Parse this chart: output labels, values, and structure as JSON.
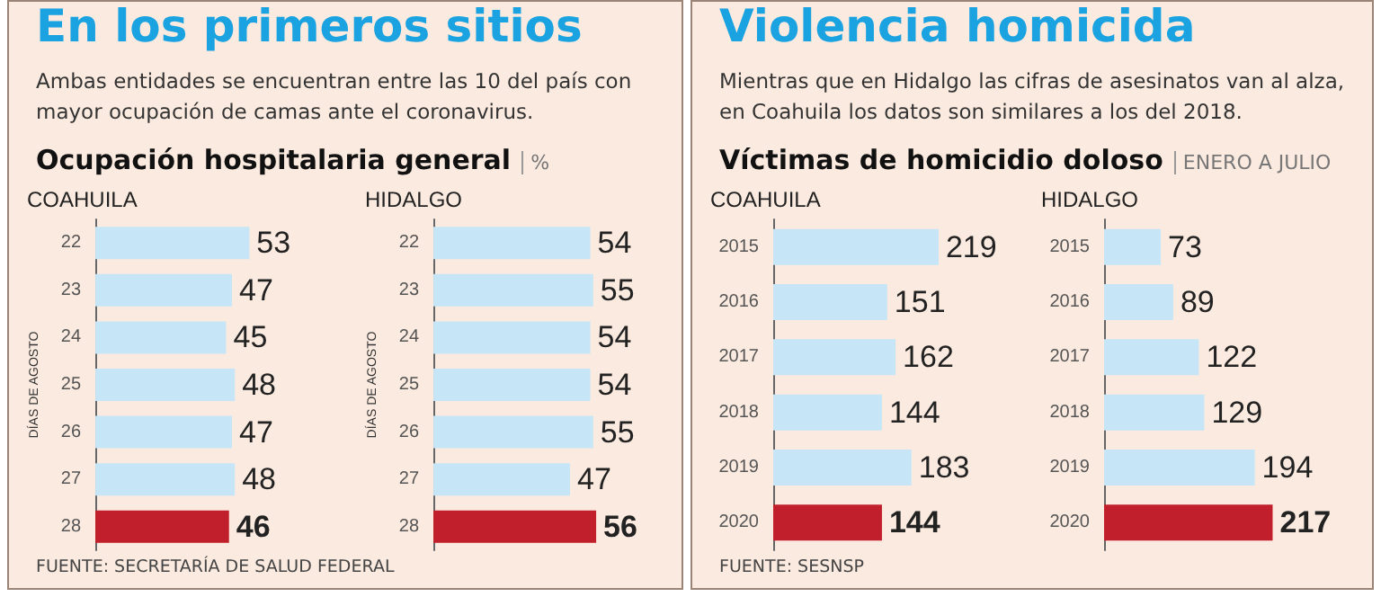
{
  "chart_data": [
    {
      "type": "bar",
      "orientation": "horizontal",
      "title": "COAHUILA",
      "ylabel": "DÍAS DE AGOSTO",
      "tick_labels": "y",
      "data_labels": true,
      "categories": [
        "22",
        "23",
        "24",
        "25",
        "26",
        "27",
        "28"
      ],
      "values": [
        53,
        47,
        45,
        48,
        47,
        48,
        46
      ],
      "colors": [
        "#c6e6f7",
        "#c6e6f7",
        "#c6e6f7",
        "#c6e6f7",
        "#c6e6f7",
        "#c6e6f7",
        "#c21f2c"
      ],
      "annotations": [
        "En los primeros sitios",
        "Ambas entidades se encuentran entre las 10 del país con mayor ocupación de camas ante el coronavirus.",
        "Ocupación hospitalaria general",
        "%",
        "FUENTE: SECRETARÍA DE SALUD FEDERAL"
      ]
    },
    {
      "type": "bar",
      "orientation": "horizontal",
      "title": "HIDALGO",
      "ylabel": "DÍAS DE AGOSTO",
      "tick_labels": "y",
      "data_labels": true,
      "categories": [
        "22",
        "23",
        "24",
        "25",
        "26",
        "27",
        "28"
      ],
      "values": [
        54,
        55,
        54,
        54,
        55,
        47,
        56
      ],
      "colors": [
        "#c6e6f7",
        "#c6e6f7",
        "#c6e6f7",
        "#c6e6f7",
        "#c6e6f7",
        "#c6e6f7",
        "#c21f2c"
      ]
    },
    {
      "type": "bar",
      "orientation": "horizontal",
      "title": "COAHUILA",
      "tick_labels": "y",
      "data_labels": true,
      "categories": [
        "2015",
        "2016",
        "2017",
        "2018",
        "2019",
        "2020"
      ],
      "values": [
        219,
        151,
        162,
        144,
        183,
        144
      ],
      "colors": [
        "#c6e6f7",
        "#c6e6f7",
        "#c6e6f7",
        "#c6e6f7",
        "#c6e6f7",
        "#c21f2c"
      ],
      "annotations": [
        "Violencia homicida",
        "Mientras que en Hidalgo las cifras de asesinatos van al alza, en Coahuila los datos son similares a los del 2018.",
        "Víctimas de homicidio doloso",
        "ENERO A JULIO",
        "FUENTE: SESNSP"
      ]
    },
    {
      "type": "bar",
      "orientation": "horizontal",
      "title": "HIDALGO",
      "tick_labels": "y",
      "data_labels": true,
      "categories": [
        "2015",
        "2016",
        "2017",
        "2018",
        "2019",
        "2020"
      ],
      "values": [
        73,
        89,
        122,
        129,
        194,
        217
      ],
      "colors": [
        "#c6e6f7",
        "#c6e6f7",
        "#c6e6f7",
        "#c6e6f7",
        "#c6e6f7",
        "#c21f2c"
      ]
    }
  ]
}
